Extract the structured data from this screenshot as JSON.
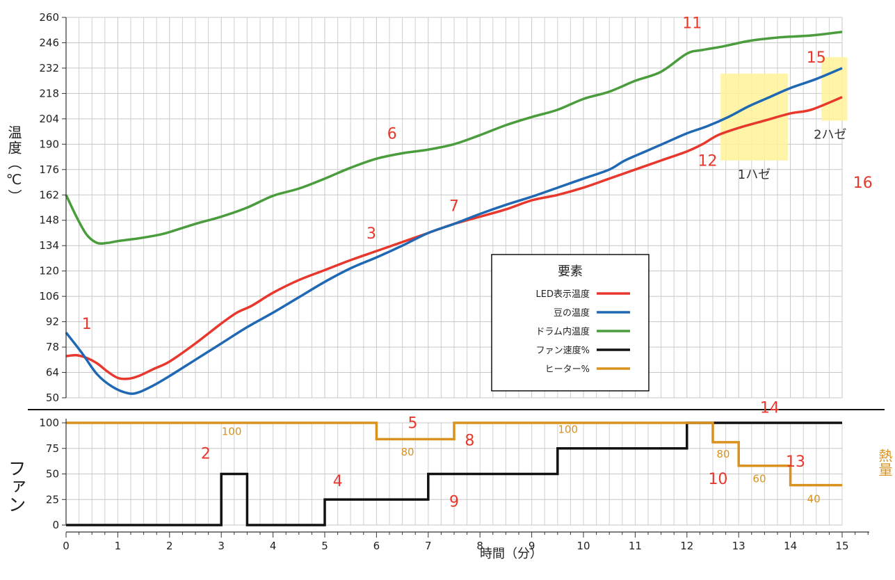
{
  "chart_data": [
    {
      "type": "line",
      "panel": "temperature",
      "ylabel": "温度（℃）",
      "ylim": [
        50,
        260
      ],
      "yticks": [
        50,
        64,
        78,
        92,
        106,
        120,
        134,
        148,
        162,
        176,
        190,
        204,
        218,
        232,
        246,
        260
      ],
      "xlim": [
        0,
        15
      ],
      "grid": true,
      "legend": {
        "title": "要素",
        "placement": "center-right",
        "entries": [
          "LED表示温度",
          "豆の温度",
          "ドラム内温度",
          "ファン速度%",
          "ヒーター%"
        ]
      },
      "series": [
        {
          "name": "LED表示温度",
          "color": "#e8372c",
          "points": [
            [
              0,
              73
            ],
            [
              0.2,
              73.5
            ],
            [
              0.4,
              72
            ],
            [
              0.6,
              69
            ],
            [
              0.8,
              64.5
            ],
            [
              1,
              61
            ],
            [
              1.2,
              60.5
            ],
            [
              1.4,
              62
            ],
            [
              1.7,
              66
            ],
            [
              2,
              70
            ],
            [
              2.5,
              80
            ],
            [
              3,
              91
            ],
            [
              3.3,
              97
            ],
            [
              3.6,
              101
            ],
            [
              4,
              108
            ],
            [
              4.5,
              115
            ],
            [
              5,
              120.5
            ],
            [
              5.5,
              126
            ],
            [
              6,
              131
            ],
            [
              6.5,
              136
            ],
            [
              7,
              141
            ],
            [
              7.5,
              146
            ],
            [
              8,
              150
            ],
            [
              8.5,
              154
            ],
            [
              9,
              159
            ],
            [
              9.5,
              162
            ],
            [
              10,
              166
            ],
            [
              10.5,
              171
            ],
            [
              11,
              176
            ],
            [
              11.5,
              181
            ],
            [
              12,
              186
            ],
            [
              12.3,
              190
            ],
            [
              12.6,
              195
            ],
            [
              13,
              199
            ],
            [
              13.5,
              203
            ],
            [
              14,
              207
            ],
            [
              14.4,
              209
            ],
            [
              15,
              216
            ]
          ]
        },
        {
          "name": "豆の温度",
          "color": "#1f68b4",
          "points": [
            [
              0,
              86
            ],
            [
              0.3,
              75
            ],
            [
              0.6,
              63
            ],
            [
              0.9,
              56
            ],
            [
              1.2,
              52.5
            ],
            [
              1.4,
              53
            ],
            [
              1.7,
              57
            ],
            [
              2,
              62
            ],
            [
              2.5,
              71
            ],
            [
              3,
              80
            ],
            [
              3.5,
              89
            ],
            [
              4,
              97
            ],
            [
              4.5,
              105.5
            ],
            [
              5,
              114
            ],
            [
              5.5,
              121.5
            ],
            [
              6,
              127.5
            ],
            [
              6.5,
              134
            ],
            [
              7,
              141
            ],
            [
              7.5,
              146
            ],
            [
              8,
              151.5
            ],
            [
              8.5,
              156.5
            ],
            [
              9,
              161
            ],
            [
              9.5,
              166
            ],
            [
              10,
              171
            ],
            [
              10.5,
              176
            ],
            [
              10.8,
              181
            ],
            [
              11.2,
              186
            ],
            [
              11.6,
              191
            ],
            [
              12,
              196
            ],
            [
              12.4,
              200
            ],
            [
              12.8,
              205
            ],
            [
              13.2,
              211
            ],
            [
              13.6,
              216
            ],
            [
              14,
              221
            ],
            [
              14.5,
              226
            ],
            [
              15,
              232
            ]
          ]
        },
        {
          "name": "ドラム内温度",
          "color": "#4a9c3d",
          "points": [
            [
              0,
              162
            ],
            [
              0.2,
              150
            ],
            [
              0.4,
              140
            ],
            [
              0.6,
              135.5
            ],
            [
              0.8,
              135.5
            ],
            [
              1,
              136.5
            ],
            [
              1.4,
              138
            ],
            [
              1.8,
              140
            ],
            [
              2,
              141.5
            ],
            [
              2.5,
              146
            ],
            [
              3,
              150
            ],
            [
              3.5,
              155
            ],
            [
              4,
              161.5
            ],
            [
              4.5,
              165.5
            ],
            [
              5,
              171
            ],
            [
              5.5,
              177
            ],
            [
              6,
              182
            ],
            [
              6.5,
              185
            ],
            [
              7,
              187
            ],
            [
              7.5,
              190
            ],
            [
              8,
              195
            ],
            [
              8.5,
              200.5
            ],
            [
              9,
              205
            ],
            [
              9.5,
              209
            ],
            [
              10,
              215
            ],
            [
              10.5,
              219
            ],
            [
              11,
              225
            ],
            [
              11.5,
              230
            ],
            [
              12,
              240
            ],
            [
              12.3,
              242
            ],
            [
              12.7,
              244
            ],
            [
              13.2,
              247
            ],
            [
              13.8,
              249
            ],
            [
              14.4,
              250
            ],
            [
              15,
              252
            ]
          ]
        }
      ],
      "annotations": [
        {
          "text": "1",
          "x": 0.4,
          "y": 88
        },
        {
          "text": "3",
          "x": 5.9,
          "y": 138
        },
        {
          "text": "6",
          "x": 6.3,
          "y": 193
        },
        {
          "text": "7",
          "x": 7.5,
          "y": 153
        },
        {
          "text": "11",
          "x": 12.1,
          "y": 254
        },
        {
          "text": "12",
          "x": 12.4,
          "y": 178
        },
        {
          "text": "15",
          "x": 14.5,
          "y": 235
        },
        {
          "text": "16",
          "x": 15.4,
          "y": 166
        }
      ],
      "highlights": [
        {
          "label": "1ハゼ",
          "x0": 12.65,
          "x1": 13.95,
          "y0": 181,
          "y1": 229
        },
        {
          "label": "2ハゼ",
          "x0": 14.6,
          "x1": 15.1,
          "y0": 203,
          "y1": 238
        }
      ]
    },
    {
      "type": "line",
      "panel": "fan-heater",
      "ylabel": "ファン",
      "ylabel_right": "熱量",
      "xlabel": "時間（分）",
      "ylim": [
        0,
        100
      ],
      "yticks": [
        0,
        25,
        50,
        75,
        100
      ],
      "xticks": [
        0,
        1,
        2,
        3,
        4,
        5,
        6,
        7,
        8,
        9,
        10,
        11,
        12,
        13,
        14,
        15
      ],
      "xlim": [
        0,
        15
      ],
      "grid": true,
      "series": [
        {
          "name": "ファン速度%",
          "color": "#111111",
          "step": true,
          "points": [
            [
              0,
              0
            ],
            [
              3,
              0
            ],
            [
              3,
              50
            ],
            [
              3.5,
              50
            ],
            [
              3.5,
              0
            ],
            [
              5,
              0
            ],
            [
              5,
              25
            ],
            [
              7,
              25
            ],
            [
              7,
              50
            ],
            [
              9.5,
              50
            ],
            [
              9.5,
              75
            ],
            [
              12,
              75
            ],
            [
              12,
              100
            ],
            [
              15,
              100
            ]
          ]
        },
        {
          "name": "ヒーター%",
          "color": "#d9921d",
          "step": true,
          "points": [
            [
              0,
              100
            ],
            [
              6,
              100
            ],
            [
              6,
              84
            ],
            [
              7.5,
              84
            ],
            [
              7.5,
              100
            ],
            [
              12.5,
              100
            ],
            [
              12.5,
              81
            ],
            [
              13,
              81
            ],
            [
              13,
              58
            ],
            [
              14,
              58
            ],
            [
              14,
              39
            ],
            [
              15,
              39
            ]
          ]
        }
      ],
      "step_labels": [
        {
          "text": "100",
          "x": 3.2,
          "y": 88
        },
        {
          "text": "80",
          "x": 6.6,
          "y": 68
        },
        {
          "text": "100",
          "x": 9.7,
          "y": 90
        },
        {
          "text": "80",
          "x": 12.7,
          "y": 66
        },
        {
          "text": "60",
          "x": 13.4,
          "y": 42
        },
        {
          "text": "40",
          "x": 14.45,
          "y": 22
        }
      ],
      "annotations": [
        {
          "text": "2",
          "x": 2.7,
          "y": 65
        },
        {
          "text": "4",
          "x": 5.25,
          "y": 38
        },
        {
          "text": "5",
          "x": 6.7,
          "y": 95
        },
        {
          "text": "8",
          "x": 7.8,
          "y": 78
        },
        {
          "text": "9",
          "x": 7.5,
          "y": 18
        },
        {
          "text": "10",
          "x": 12.6,
          "y": 40
        },
        {
          "text": "13",
          "x": 14.1,
          "y": 57
        },
        {
          "text": "14",
          "x": 13.6,
          "y": 110
        }
      ]
    }
  ]
}
